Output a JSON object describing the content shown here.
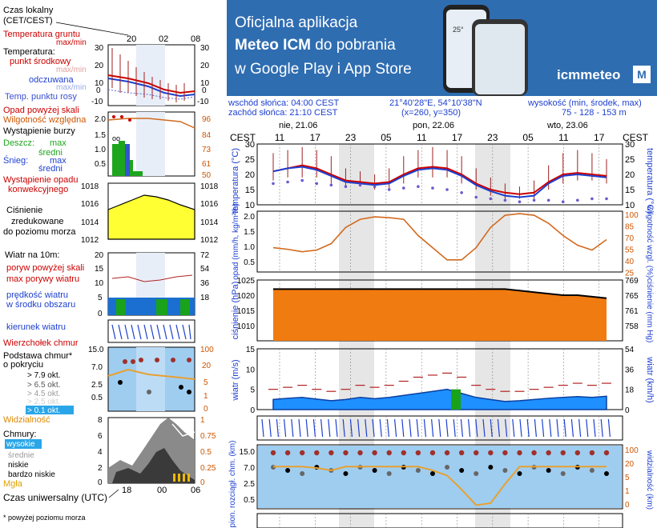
{
  "banner": {
    "line1": "Oficjalna aplikacja",
    "line2_prefix": "Meteo ICM",
    "line2_suffix": " do pobrania",
    "line3": "w Google Play i App Store",
    "brand": "icmmeteo",
    "logo_letter": "M",
    "phone_value": "25°"
  },
  "info": {
    "sunrise": "wschód słońca: 04:00 CEST",
    "sunset": "zachód słońca: 21:10 CEST",
    "coords": "21°40'28\"E, 54°10'38\"N",
    "grid": "(x=260, y=350)",
    "altitude_label": "wysokość (min, środek, max)",
    "altitude_values": "75 - 128 - 153 m"
  },
  "legend": {
    "local_time": "Czas lokalny",
    "local_time_zone": "(CET/CEST)",
    "top_hours": [
      "20",
      "02",
      "08"
    ],
    "bottom_hours": [
      "18",
      "00",
      "06"
    ],
    "temp_ground": "Temperatura gruntu",
    "temp_ground_minmax": "max/min",
    "temperature": "Temperatura:",
    "midpoint": "punkt środkowy",
    "midpoint_minmax": "max/min",
    "feels_like": "odczuwana",
    "feels_minmax": "max/min",
    "dew_point": "Temp. punktu rosy",
    "temp_ticks": [
      "30",
      "20",
      "10",
      "0",
      "-10"
    ],
    "precip_above": "Opad powyżej skali",
    "humidity": "Wilgotność względna",
    "storm": "Wystąpienie burzy",
    "rain": "Deszcz:",
    "rain_max": "max",
    "rain_mid": "średni",
    "snow": "Śnieg:",
    "snow_max": "max",
    "snow_mid": "średni",
    "conv_precip": "Wystąpienie opadu",
    "conv_precip2": "konwekcyjnego",
    "precip_ticks": [
      "2.0",
      "1.5",
      "1.0",
      "0.5"
    ],
    "humid_ticks": [
      "96",
      "84",
      "73",
      "61",
      "50"
    ],
    "pressure_title": "Ciśnienie",
    "pressure_l2": "zredukowane",
    "pressure_l3": "do poziomu morza",
    "pressure_ticks": [
      "1018",
      "1016",
      "1014",
      "1012"
    ],
    "wind_title": "Wiatr na 10m:",
    "gusts_above": "poryw powyżej skali",
    "max_gusts": "max porywy wiatru",
    "wind_speed": "prędkość wiatru",
    "wind_area": "w środku obszaru",
    "wind_ticks": [
      "20",
      "15",
      "10",
      "5",
      "0"
    ],
    "wind_kmh_ticks": [
      "72",
      "54",
      "36",
      "18"
    ],
    "wind_dir": "kierunek wiatru",
    "cloud_top": "Wierzchołek chmur",
    "cloud_base": "Podstawa chmur*",
    "cloud_cover": "o pokryciu",
    "okt": [
      "> 7.9 okt.",
      "> 6.5 okt.",
      "> 4.5 okt.",
      "> 2.5 okt.",
      "> 0.1 okt."
    ],
    "cloud_ticks": [
      "15.0",
      "7.0",
      "2.5",
      "0.5"
    ],
    "cloud_right_ticks": [
      "100",
      "20",
      "5",
      "1",
      "0"
    ],
    "visibility": "Widzialność",
    "clouds": "Chmury:",
    "high": "wysokie",
    "mid": "średnie",
    "low": "niskie",
    "very_low": "bardzo niskie",
    "fog": "Mgła",
    "clouds_ticks": [
      "8",
      "6",
      "4",
      "2",
      "0"
    ],
    "clouds_right_ticks": [
      "1",
      "0.75",
      "0.5",
      "0.25",
      "0"
    ],
    "utc": "Czas uniwersalny (UTC)",
    "footnote": "* powyżej poziomu morza"
  },
  "chart_data": [
    {
      "type": "line",
      "title": "temperatura",
      "ylabel": "temperatura (°C)",
      "ylim": [
        10,
        30
      ],
      "yticks": [
        "30",
        "25",
        "20",
        "15",
        "10"
      ],
      "days": [
        "nie, 21.06",
        "pon, 22.06",
        "wto, 23.06"
      ],
      "hours": [
        "11",
        "17",
        "23",
        "05",
        "11",
        "17",
        "23",
        "05",
        "11",
        "17"
      ],
      "tz": "CEST",
      "series": [
        {
          "values": [
            21,
            22,
            23,
            22,
            20,
            18,
            17.5,
            17,
            17.5,
            20,
            22,
            22.5,
            22,
            20,
            17,
            15,
            14,
            13.5,
            14,
            17.5,
            20,
            20.5,
            20,
            19.5
          ]
        },
        {
          "values": [
            21,
            22,
            22.5,
            21.5,
            19.5,
            17.5,
            17,
            16.5,
            17,
            19.5,
            21.5,
            22,
            21.5,
            19.5,
            16.5,
            14.5,
            13,
            12.5,
            13,
            17,
            19.5,
            20,
            19.5,
            19
          ]
        },
        {
          "values": [
            17,
            17.5,
            18,
            17,
            16.5,
            16,
            16.5,
            16,
            15,
            15.5,
            16,
            15.5,
            15,
            14,
            12.5,
            12,
            11.5,
            11,
            11.5,
            11.5,
            11,
            11.5,
            12,
            12
          ]
        }
      ],
      "max_values": [
        27,
        28,
        29,
        28,
        26,
        22,
        21,
        20,
        22,
        26,
        28,
        29,
        28,
        26,
        22,
        19,
        17,
        16,
        18,
        23,
        27,
        28,
        27,
        25
      ],
      "min_values": [
        18,
        19,
        19,
        19,
        17,
        16,
        16,
        15,
        15,
        17,
        19,
        19,
        19,
        17,
        15,
        13,
        12,
        12,
        12,
        15,
        17,
        18,
        18,
        17
      ]
    },
    {
      "type": "line",
      "title": "opad / wilgotność",
      "ylabel": "opad (mm/h, kg/m²/h)",
      "y2label": "wilgotność wzgl. (%)",
      "yticks": [
        "2.0",
        "1.5",
        "1.0",
        "0.5"
      ],
      "y2ticks": [
        "100",
        "85",
        "70",
        "55",
        "40",
        "25"
      ],
      "ylim": [
        25,
        100
      ],
      "series": [
        {
          "values": [
            55,
            53,
            50,
            52,
            60,
            80,
            90,
            93,
            92,
            90,
            70,
            55,
            40,
            40,
            55,
            80,
            95,
            97,
            95,
            85,
            70,
            58,
            52,
            65
          ]
        }
      ]
    },
    {
      "type": "area",
      "title": "ciśnienie",
      "ylabel": "ciśnienie (hPa)",
      "y2label": "ciśnienie (mm Hg)",
      "yticks": [
        "1025",
        "1020",
        "1015",
        "1010"
      ],
      "y2ticks": [
        "769",
        "765",
        "761",
        "758"
      ],
      "ylim": [
        1005,
        1025
      ],
      "values": [
        1022,
        1022,
        1022,
        1022,
        1022,
        1022,
        1022,
        1022,
        1022,
        1022,
        1022,
        1022,
        1022,
        1022,
        1022,
        1022,
        1022,
        1021.5,
        1021,
        1020.5,
        1020,
        1020,
        1019.5,
        1019
      ]
    },
    {
      "type": "bar",
      "title": "wiatr",
      "ylabel": "wiatr (m/s)",
      "y2label": "wiatr (km/h)",
      "yticks": [
        "15",
        "10",
        "5",
        "0"
      ],
      "y2ticks": [
        "54",
        "36",
        "18",
        "0"
      ],
      "ylim": [
        0,
        15
      ],
      "values": [
        2.5,
        2.8,
        3,
        2.6,
        2.2,
        2.5,
        3,
        2.7,
        3,
        3.5,
        4,
        4.5,
        5,
        4,
        3,
        2.5,
        2,
        2.2,
        2.5,
        2.8,
        3,
        3.2,
        3,
        3.3
      ],
      "gusts": [
        5,
        5.5,
        6,
        5,
        4.5,
        5,
        6,
        5.5,
        6,
        7,
        8,
        8.5,
        9,
        8,
        6,
        5,
        4.5,
        4.5,
        5,
        5.5,
        6,
        6.5,
        6,
        6.5
      ]
    },
    {
      "type": "scatter",
      "title": "chmury",
      "ylabel": "pion. rozciągł. chm. (km)",
      "y2label": "widzialność (km)",
      "yticks": [
        "15.0",
        "7.0",
        "2.5",
        "0.5"
      ],
      "y2ticks": [
        "100",
        "20",
        "5",
        "1",
        "0"
      ],
      "ylim": [
        0,
        15
      ],
      "visibility": [
        20,
        20,
        20,
        18,
        15,
        20,
        20,
        20,
        20,
        20,
        20,
        15,
        10,
        3,
        0.3,
        0.5,
        5,
        20,
        20,
        20,
        20,
        20,
        20,
        20
      ]
    }
  ]
}
